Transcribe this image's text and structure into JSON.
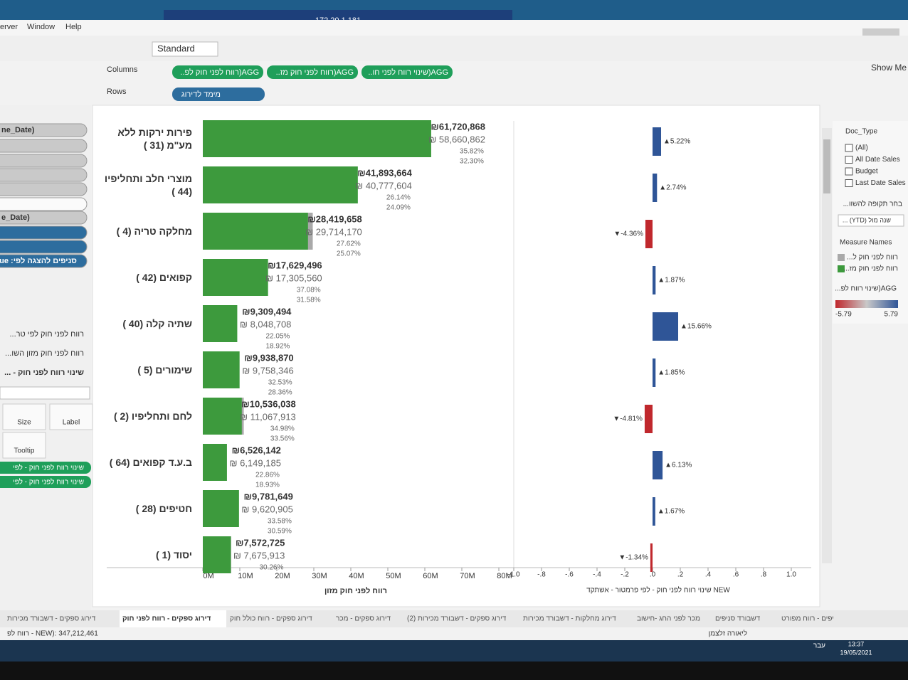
{
  "window": {
    "title": "172.20.1.181",
    "menu": [
      "erver",
      "Window",
      "Help"
    ],
    "toolbar_select": "Standard",
    "show_me": "Show Me"
  },
  "shelves": {
    "columns_label": "Columns",
    "columns": [
      "AGG(רווח לפני חוק לפ..",
      "AGG(רווח לפני חוק מז..",
      "AGG(שינוי רווח לפני חו.."
    ],
    "rows_label": "Rows",
    "rows": [
      "מימד לדירוג"
    ]
  },
  "left_panel": {
    "pills": [
      "ne_Date)",
      "e_Date)",
      "סניפים להצגה לפי: True"
    ],
    "fields": [
      "רווח לפני חוק לפי טר...",
      "רווח לפני חוק מזון השו...",
      "שינוי רווח לפני חוק - ..."
    ],
    "marks": [
      "Size",
      "Label",
      "Tooltip"
    ],
    "mark_pills": [
      "שינוי רווח לפני חוק - לפי",
      "שינוי רווח לפני חוק - לפי"
    ]
  },
  "legend": {
    "doc_type_title": "Doc_Type",
    "doc_types": [
      "(All)",
      "All Date Sales",
      "Budget",
      "Last Date Sales"
    ],
    "period_title": "בחר תקופה להשוו...",
    "period_value": "שנה מול (YTD) ...",
    "measure_title": "Measure Names",
    "color_title": "AGG(שינוי רווח לפ...",
    "color_range": [
      -5.79,
      5.79
    ]
  },
  "chart_data": [
    {
      "type": "bar",
      "orientation": "horizontal",
      "categories": [
        "פירות ירקות ללא מע\"מ (31 )",
        "מוצרי חלב ותחליפיו (44 )",
        "מחלקה טריה (4 )",
        "קפואים (42 )",
        "שתיה קלה (40 )",
        "שימורים (5 )",
        "לחם ותחליפיו (2 )",
        "ב.ע.ד קפואים (64 )",
        "חטיפים (28 )",
        "יסוד (1 )"
      ],
      "series": [
        {
          "name": "רווח לפני חוק מז...",
          "color": "#3d9a3d",
          "values": [
            61720868,
            41893664,
            28419658,
            17629496,
            9309494,
            9938870,
            10536038,
            6526142,
            9781649,
            7572725
          ],
          "value_labels": [
            "₪61,720,868",
            "₪41,893,664",
            "₪28,419,658",
            "₪17,629,496",
            "₪9,309,494",
            "₪9,938,870",
            "₪10,536,038",
            "₪6,526,142",
            "₪9,781,649",
            "₪7,572,725"
          ]
        },
        {
          "name": "רווח לפני חוק ל...",
          "color": "#a9a9a9",
          "values": [
            58660862,
            40777604,
            29714170,
            17305560,
            8048708,
            9758346,
            11067913,
            6149185,
            9620905,
            7675913
          ],
          "value_labels": [
            "₪ 58,660,862",
            "₪ 40,777,604",
            "₪ 29,714,170",
            "₪ 17,305,560",
            "₪ 8,048,708",
            "₪ 9,758,346",
            "₪ 11,067,913",
            "₪ 6,149,185",
            "₪ 9,620,905",
            "₪ 7,675,913"
          ]
        }
      ],
      "margins": [
        {
          "values": [
            35.82,
            26.14,
            27.62,
            37.08,
            22.05,
            32.53,
            34.98,
            22.86,
            33.58,
            30.26
          ],
          "value_labels": [
            "35.82%",
            "26.14%",
            "27.62%",
            "37.08%",
            "22.05%",
            "32.53%",
            "34.98%",
            "22.86%",
            "33.58%",
            "30.26%"
          ]
        },
        {
          "values": [
            32.3,
            24.09,
            25.07,
            31.58,
            18.92,
            28.36,
            33.56,
            18.93,
            30.59,
            null
          ],
          "value_labels": [
            "32.30%",
            "24.09%",
            "25.07%",
            "31.58%",
            "18.92%",
            "28.36%",
            "33.56%",
            "18.93%",
            "30.59%",
            null
          ]
        }
      ],
      "xlim": [
        0,
        80000000
      ],
      "xticks": [
        {
          "value": 0,
          "label": "0M"
        },
        {
          "value": 10000000,
          "label": "10M"
        },
        {
          "value": 20000000,
          "label": "20M"
        },
        {
          "value": 30000000,
          "label": "30M"
        },
        {
          "value": 40000000,
          "label": "40M"
        },
        {
          "value": 50000000,
          "label": "50M"
        },
        {
          "value": 60000000,
          "label": "60M"
        },
        {
          "value": 70000000,
          "label": "70M"
        },
        {
          "value": 80000000,
          "label": "80M"
        }
      ],
      "xlabel": "רווח לפני חוק מזון"
    },
    {
      "type": "diverging",
      "orientation": "horizontal",
      "values": [
        5.22,
        2.74,
        -4.36,
        1.87,
        15.66,
        1.85,
        -4.81,
        6.13,
        1.67,
        -1.34
      ],
      "value_labels": [
        "▲5.22%",
        "▲2.74%",
        "▼-4.36%",
        "▲1.87%",
        "▲15.66%",
        "▲1.85%",
        "▼-4.81%",
        "▲6.13%",
        "▲1.67%",
        "▼-1.34%"
      ],
      "positive_color": "#2f5597",
      "negative_color": "#c0282d",
      "xlim": [
        -1,
        1
      ],
      "xticks": [
        {
          "value": -1,
          "label": "-1.0"
        },
        {
          "value": -0.8,
          "label": "-.8"
        },
        {
          "value": -0.6,
          "label": "-.6"
        },
        {
          "value": -0.4,
          "label": "-.4"
        },
        {
          "value": -0.2,
          "label": "-.2"
        },
        {
          "value": 0,
          "label": ".0"
        },
        {
          "value": 0.2,
          "label": ".2"
        },
        {
          "value": 0.4,
          "label": ".4"
        },
        {
          "value": 0.6,
          "label": ".6"
        },
        {
          "value": 0.8,
          "label": ".8"
        },
        {
          "value": 1,
          "label": "1.0"
        }
      ],
      "xlabel": "שינוי רווח לפני חוק - לפי פרמטור - אשתקד NEW"
    }
  ],
  "tabs": [
    "דירוג ספקים - דשבורד מכירות",
    "דירוג ספקים - רווח לפני חוק",
    "דירוג ספקים - רווח כולל חוק",
    "דירוג ספקים - מכר",
    "דירוג ספקים - דשבורד מכירות (2)",
    "דירוג מחלקות - דשבורד מכירות",
    "מכר לפני החג -חישוב",
    "דשבורד סניפים",
    "יפים - רווח מפורט"
  ],
  "status": {
    "summary": "רווח לפ - NEW): 347,212,461",
    "user": "ליאורה זלצמן"
  },
  "taskbar": {
    "lang": "עבר",
    "time": "13:37",
    "date": "19/05/2021"
  }
}
